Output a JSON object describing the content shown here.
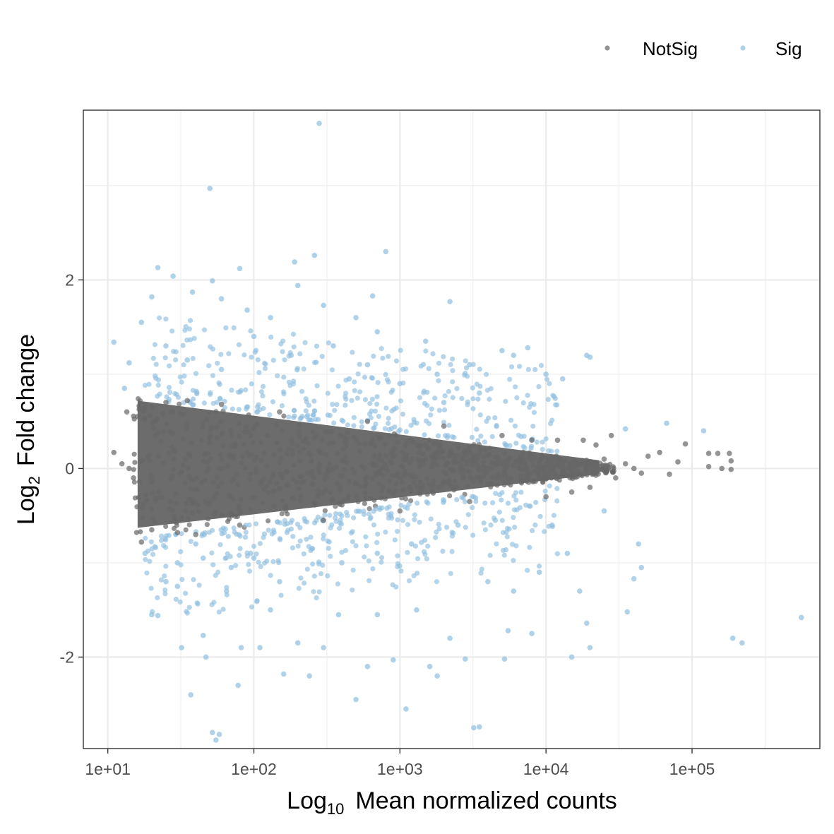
{
  "chart_data": {
    "type": "scatter",
    "x_scale": "log10",
    "xlim": [
      6.8,
      750000
    ],
    "ylim": [
      -2.97,
      3.8
    ],
    "grid": true,
    "legend_position": "top-right",
    "xlabel": {
      "main": "Log",
      "sub": "10",
      "rest": "Mean normalized counts"
    },
    "ylabel": {
      "main": "Log",
      "sub": "2",
      "rest": "Fold change"
    },
    "x_ticks": [
      {
        "value": 10,
        "label": "1e+01"
      },
      {
        "value": 100,
        "label": "1e+02"
      },
      {
        "value": 1000,
        "label": "1e+03"
      },
      {
        "value": 10000,
        "label": "1e+04"
      },
      {
        "value": 100000,
        "label": "1e+05"
      }
    ],
    "y_ticks": [
      {
        "value": 2,
        "label": "2"
      },
      {
        "value": 0,
        "label": "0"
      },
      {
        "value": -2,
        "label": "-2"
      }
    ],
    "series": [
      {
        "name": "NotSig",
        "color": "#666666",
        "points": [
          [
            11,
            0.17
          ],
          [
            12.5,
            0.05
          ],
          [
            13.5,
            0.6
          ],
          [
            14,
            0.0
          ],
          [
            15,
            -0.1
          ],
          [
            16,
            0.55
          ],
          [
            17,
            -0.78
          ],
          [
            18,
            0.65
          ],
          [
            20,
            -0.65
          ],
          [
            25,
            0.7
          ],
          [
            30,
            -0.68
          ],
          [
            35,
            0.72
          ],
          [
            40,
            -0.7
          ],
          [
            60,
            0.68
          ],
          [
            80,
            -0.6
          ],
          [
            150,
            0.6
          ],
          [
            300,
            -0.55
          ],
          [
            600,
            0.5
          ],
          [
            1000,
            -0.45
          ],
          [
            2000,
            0.45
          ],
          [
            3000,
            -0.35
          ],
          [
            5000,
            0.35
          ],
          [
            8000,
            0.3
          ],
          [
            10000,
            -0.3
          ],
          [
            12000,
            0.3
          ],
          [
            15000,
            -0.25
          ],
          [
            18000,
            0.3
          ],
          [
            20000,
            -0.2
          ],
          [
            22000,
            0.25
          ],
          [
            25000,
            0.1
          ],
          [
            28000,
            0.35
          ],
          [
            30000,
            -0.1
          ],
          [
            35000,
            0.05
          ],
          [
            40000,
            0.0
          ],
          [
            45000,
            -0.05
          ],
          [
            50000,
            0.13
          ],
          [
            60000,
            0.17
          ],
          [
            70000,
            -0.06
          ],
          [
            80000,
            0.07
          ],
          [
            90000,
            0.26
          ],
          [
            130000,
            0.16
          ],
          [
            130000,
            0.02
          ],
          [
            150000,
            0.16
          ],
          [
            160000,
            0.0
          ],
          [
            180000,
            0.16
          ],
          [
            185000,
            0.08
          ],
          [
            185000,
            -0.01
          ]
        ]
      },
      {
        "name": "Sig",
        "color": "#8fbfdf",
        "points": [
          [
            280,
            3.66
          ],
          [
            50,
            2.97
          ],
          [
            800,
            2.3
          ],
          [
            260,
            2.26
          ],
          [
            22,
            2.13
          ],
          [
            190,
            2.19
          ],
          [
            80,
            2.12
          ],
          [
            52,
            1.99
          ],
          [
            28,
            2.04
          ],
          [
            2200,
            1.77
          ],
          [
            11,
            1.34
          ],
          [
            13,
            0.85
          ],
          [
            14,
            1.12
          ],
          [
            17,
            1.55
          ],
          [
            20,
            1.82
          ],
          [
            38,
            1.87
          ],
          [
            60,
            1.8
          ],
          [
            90,
            1.68
          ],
          [
            130,
            1.6
          ],
          [
            200,
            1.94
          ],
          [
            300,
            1.73
          ],
          [
            500,
            1.6
          ],
          [
            650,
            1.83
          ],
          [
            1500,
            1.35
          ],
          [
            1800,
            1.0
          ],
          [
            3000,
            1.1
          ],
          [
            5000,
            1.25
          ],
          [
            6000,
            1.2
          ],
          [
            7500,
            1.28
          ],
          [
            10000,
            1.0
          ],
          [
            13000,
            0.95
          ],
          [
            19000,
            1.2
          ],
          [
            20000,
            1.18
          ],
          [
            35000,
            0.42
          ],
          [
            67000,
            0.48
          ],
          [
            120000,
            0.4
          ],
          [
            18,
            -0.9
          ],
          [
            20,
            -1.55
          ],
          [
            22,
            -1.56
          ],
          [
            25,
            -1.2
          ],
          [
            30,
            -1.25
          ],
          [
            32,
            -1.9
          ],
          [
            37,
            -2.4
          ],
          [
            40,
            -0.8
          ],
          [
            45,
            -1.77
          ],
          [
            47,
            -2.0
          ],
          [
            52,
            -2.8
          ],
          [
            55,
            -2.88
          ],
          [
            58,
            -2.82
          ],
          [
            65,
            -1.3
          ],
          [
            78,
            -2.3
          ],
          [
            82,
            -1.9
          ],
          [
            95,
            -0.9
          ],
          [
            110,
            -1.9
          ],
          [
            130,
            -1.5
          ],
          [
            160,
            -2.18
          ],
          [
            200,
            -1.85
          ],
          [
            240,
            -2.2
          ],
          [
            300,
            -1.9
          ],
          [
            380,
            -1.55
          ],
          [
            500,
            -2.45
          ],
          [
            600,
            -2.1
          ],
          [
            700,
            -1.55
          ],
          [
            900,
            -2.03
          ],
          [
            1100,
            -2.55
          ],
          [
            1300,
            -1.5
          ],
          [
            1600,
            -2.1
          ],
          [
            1800,
            -2.2
          ],
          [
            2200,
            -1.8
          ],
          [
            2800,
            -2.02
          ],
          [
            3200,
            -2.75
          ],
          [
            3500,
            -2.74
          ],
          [
            4000,
            -1.2
          ],
          [
            5200,
            -2.02
          ],
          [
            5500,
            -1.72
          ],
          [
            6000,
            -1.3
          ],
          [
            8000,
            -1.75
          ],
          [
            9000,
            -1.1
          ],
          [
            11000,
            -0.6
          ],
          [
            14000,
            -0.9
          ],
          [
            15000,
            -2.0
          ],
          [
            17000,
            -1.3
          ],
          [
            19000,
            -1.64
          ],
          [
            20000,
            -1.9
          ],
          [
            25000,
            -0.45
          ],
          [
            36000,
            -1.52
          ],
          [
            40000,
            -1.17
          ],
          [
            43000,
            -0.8
          ],
          [
            45000,
            -1.05
          ],
          [
            190000,
            -1.8
          ],
          [
            220000,
            -1.85
          ],
          [
            560000,
            -1.58
          ],
          [
            1200,
            -0.8
          ],
          [
            2500,
            -0.6
          ],
          [
            4500,
            -0.55
          ],
          [
            700,
            -0.9
          ],
          [
            400,
            -1.0
          ],
          [
            250,
            -0.85
          ],
          [
            150,
            -1.2
          ],
          [
            100,
            -0.95
          ],
          [
            70,
            -1.05
          ],
          [
            45,
            -0.95
          ],
          [
            30,
            -1.0
          ],
          [
            1000,
            0.9
          ],
          [
            600,
            1.1
          ],
          [
            350,
            1.3
          ],
          [
            180,
            1.2
          ],
          [
            100,
            1.4
          ],
          [
            60,
            1.05
          ],
          [
            35,
            1.15
          ],
          [
            25,
            1.3
          ],
          [
            2000,
            0.7
          ],
          [
            3500,
            0.8
          ],
          [
            700,
            1.45
          ],
          [
            450,
            0.95
          ]
        ]
      }
    ]
  }
}
